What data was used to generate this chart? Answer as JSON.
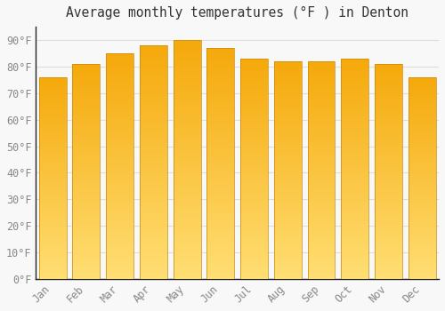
{
  "title": "Average monthly temperatures (°F ) in Denton",
  "months": [
    "Jan",
    "Feb",
    "Mar",
    "Apr",
    "May",
    "Jun",
    "Jul",
    "Aug",
    "Sep",
    "Oct",
    "Nov",
    "Dec"
  ],
  "values": [
    76,
    81,
    85,
    88,
    90,
    87,
    83,
    82,
    82,
    83,
    81,
    76
  ],
  "ylim": [
    0,
    95
  ],
  "yticks": [
    0,
    10,
    20,
    30,
    40,
    50,
    60,
    70,
    80,
    90
  ],
  "ytick_labels": [
    "0°F",
    "10°F",
    "20°F",
    "30°F",
    "40°F",
    "50°F",
    "60°F",
    "70°F",
    "80°F",
    "90°F"
  ],
  "background_color": "#F8F8F8",
  "plot_bg_color": "#F8F8F8",
  "grid_color": "#DDDDDD",
  "title_fontsize": 10.5,
  "tick_fontsize": 8.5,
  "bar_width": 0.82,
  "bar_color_top": "#F5A800",
  "bar_color_bottom": "#FFD966",
  "bar_edge_color": "#C8880A",
  "title_color": "#333333",
  "tick_color": "#888888",
  "spine_color": "#222222"
}
